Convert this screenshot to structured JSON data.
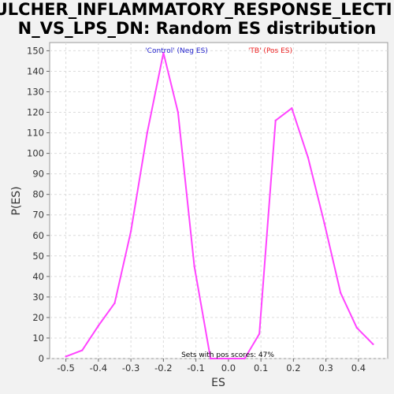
{
  "chart_data": {
    "type": "line",
    "title_lines": [
      "FULCHER_INFLAMMATORY_RESPONSE_LECTI",
      "N_VS_LPS_DN: Random ES distribution"
    ],
    "xlabel": "ES",
    "ylabel": "P(ES)",
    "xlim": [
      -0.55,
      0.49
    ],
    "ylim": [
      0,
      154
    ],
    "x_ticks": [
      "-0.5",
      "-0.4",
      "-0.3",
      "-0.2",
      "-0.1",
      "0.0",
      "0.1",
      "0.2",
      "0.3",
      "0.4"
    ],
    "x_tick_values": [
      -0.5,
      -0.4,
      -0.3,
      -0.2,
      -0.1,
      0.0,
      0.1,
      0.2,
      0.3,
      0.4
    ],
    "y_ticks": [
      "0",
      "10",
      "20",
      "30",
      "40",
      "50",
      "60",
      "70",
      "80",
      "90",
      "100",
      "110",
      "120",
      "130",
      "140",
      "150"
    ],
    "y_tick_values": [
      0,
      10,
      20,
      30,
      40,
      50,
      60,
      70,
      80,
      90,
      100,
      110,
      120,
      130,
      140,
      150
    ],
    "grid": true,
    "series": [
      {
        "color": "#ff44ff",
        "x": [
          -0.5,
          -0.45,
          -0.4,
          -0.35,
          -0.3,
          -0.25,
          -0.2,
          -0.155,
          -0.105,
          -0.055,
          -0.02,
          0.02,
          0.05,
          0.095,
          0.145,
          0.195,
          0.245,
          0.295,
          0.345,
          0.395,
          0.445
        ],
        "y": [
          1,
          4,
          16,
          27,
          62,
          110,
          149,
          120,
          45,
          0,
          0,
          0,
          0,
          12,
          116,
          122,
          98,
          66,
          32,
          15,
          7
        ]
      }
    ],
    "annotations": [
      {
        "text": "'Control' (Neg ES)",
        "color": "#2222cc"
      },
      {
        "text": "'TB' (Pos ES)",
        "color": "#ee2222"
      },
      {
        "text": "Sets with pos scores: 47%",
        "color": "#000000"
      }
    ]
  }
}
